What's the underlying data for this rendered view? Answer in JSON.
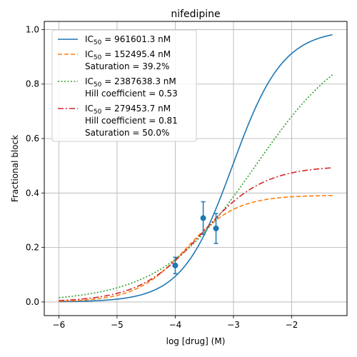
{
  "chart_data": {
    "type": "line",
    "title": "nifedipine",
    "xlabel": "log [drug] (M)",
    "ylabel": "Fractional block",
    "xlim": [
      -6.25,
      -1.05
    ],
    "ylim": [
      -0.05,
      1.03
    ],
    "grid": true,
    "legend_position": "upper-left",
    "x_ticks": [
      -6,
      -5,
      -4,
      -3,
      -2
    ],
    "x_tick_labels": [
      "−6",
      "−5",
      "−4",
      "−3",
      "−2"
    ],
    "y_ticks": [
      0.0,
      0.2,
      0.4,
      0.6,
      0.8,
      1.0
    ],
    "y_tick_labels": [
      "0.0",
      "0.2",
      "0.4",
      "0.6",
      "0.8",
      "1.0"
    ],
    "x_range": [
      -6,
      -1.3
    ],
    "series": [
      {
        "kind": "hill",
        "ic50_nM": 961601.3,
        "hill": 1.0,
        "saturation": 1.0,
        "color": "#1f77b4",
        "dash": "solid",
        "legend_lines": [
          {
            "pre": "IC",
            "sub": "50",
            "post": " = 961601.3 nM"
          }
        ]
      },
      {
        "kind": "hill",
        "ic50_nM": 152495.4,
        "hill": 1.0,
        "saturation": 0.392,
        "color": "#ff7f0e",
        "dash": "dashed",
        "legend_lines": [
          {
            "pre": "IC",
            "sub": "50",
            "post": " = 152495.4 nM"
          },
          {
            "text": "Saturation = 39.2%"
          }
        ]
      },
      {
        "kind": "hill",
        "ic50_nM": 2387638.3,
        "hill": 0.53,
        "saturation": 1.0,
        "color": "#2ca02c",
        "dash": "dotted",
        "legend_lines": [
          {
            "pre": "IC",
            "sub": "50",
            "post": " = 2387638.3 nM"
          },
          {
            "text": "Hill coefficient = 0.53"
          }
        ]
      },
      {
        "kind": "hill",
        "ic50_nM": 279453.7,
        "hill": 0.81,
        "saturation": 0.5,
        "color": "#d62728",
        "dash": "dashdot",
        "legend_lines": [
          {
            "pre": "IC",
            "sub": "50",
            "post": " = 279453.7 nM"
          },
          {
            "text": "Hill coefficient = 0.81"
          },
          {
            "text": "Saturation = 50.0%"
          }
        ]
      }
    ],
    "points": {
      "color": "#1f77b4",
      "x": [
        -4.0,
        -3.52,
        -3.3
      ],
      "y": [
        0.134,
        0.308,
        0.27
      ],
      "err": [
        0.03,
        0.06,
        0.055
      ]
    }
  }
}
